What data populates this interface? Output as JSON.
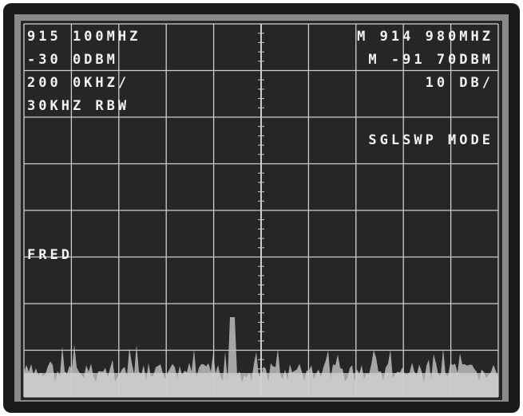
{
  "display": {
    "center_frequency": "915 100MHZ",
    "reference_level": "-30 0DBM",
    "span": "200 0KHZ/",
    "resolution_bandwidth": "30KHZ RBW",
    "marker_frequency": "M 914 980MHZ",
    "marker_level": "M -91 70DBM",
    "scale": "10 DB/",
    "sweep_mode": "SGLSWP MODE",
    "label": "FRED"
  }
}
